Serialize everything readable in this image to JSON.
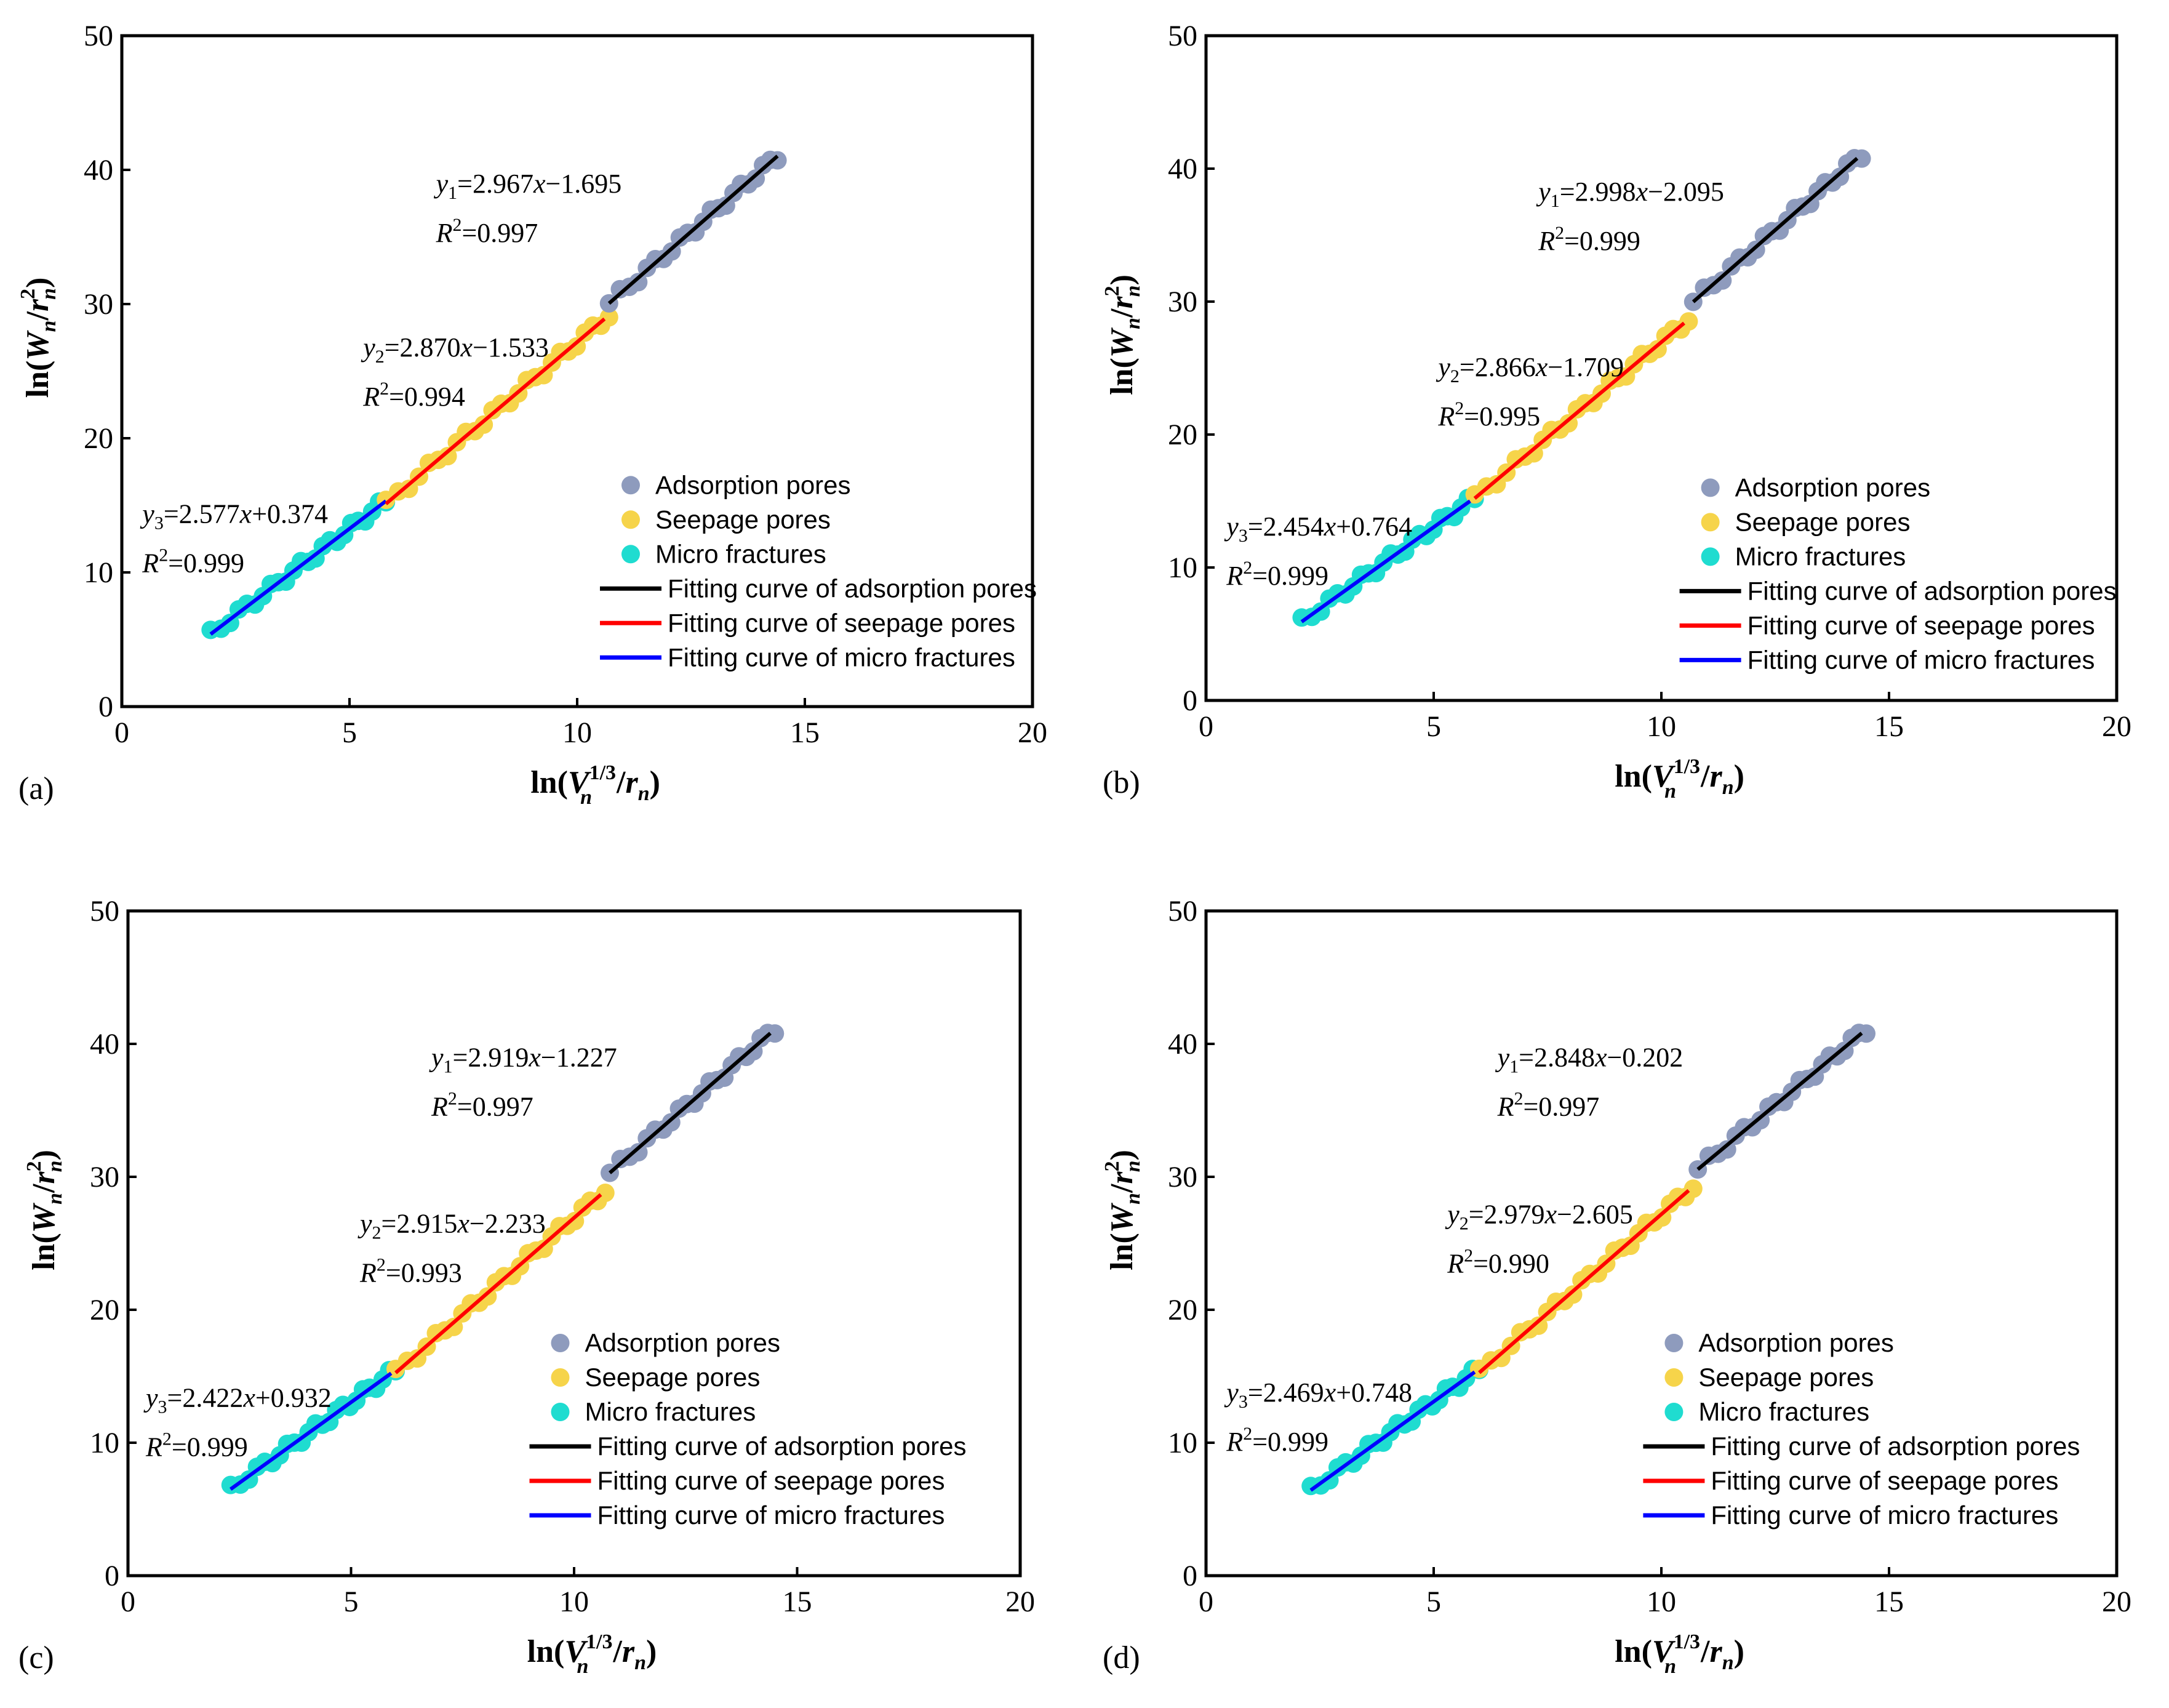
{
  "figure": {
    "panel_labels": [
      "(a)",
      "(b)",
      "(c)",
      "(d)"
    ],
    "legend": {
      "adsorption_pores": "Adsorption pores",
      "seepage_pores": "Seepage pores",
      "micro_fractures": "Micro fractures",
      "fit_adsorption": "Fitting curve of adsorption pores",
      "fit_seepage": "Fitting curve of seepage pores",
      "fit_micro": "Fitting curve of micro fractures"
    },
    "colors": {
      "adsorption_points": "#8e9bbd",
      "seepage_points": "#f6d44a",
      "micro_points": "#1fdcd0",
      "fit_adsorption": "#000000",
      "fit_seepage": "#ff0000",
      "fit_micro": "#0000ff"
    }
  },
  "chart_data": [
    {
      "type": "scatter",
      "panel": "(a)",
      "xlabel": "ln(Vn^1/3/rn)",
      "ylabel": "ln(Wn/rn^2)",
      "xlim": [
        0,
        20
      ],
      "ylim": [
        0,
        50
      ],
      "xticks": [
        0,
        5,
        10,
        15,
        20
      ],
      "yticks": [
        0,
        10,
        20,
        30,
        40,
        50
      ],
      "series": [
        {
          "name": "Adsorption pores",
          "x_range": [
            10.7,
            14.4
          ],
          "fit_slope": 2.967,
          "fit_intercept": -1.695,
          "fit_x": [
            10.7,
            14.4
          ]
        },
        {
          "name": "Seepage pores",
          "x_range": [
            5.8,
            10.7
          ],
          "fit_slope": 2.87,
          "fit_intercept": -1.533,
          "fit_x": [
            5.8,
            10.6
          ]
        },
        {
          "name": "Micro fractures",
          "x_range": [
            1.95,
            5.8
          ],
          "fit_slope": 2.577,
          "fit_intercept": 0.374,
          "fit_x": [
            1.95,
            5.8
          ]
        }
      ],
      "annotations": [
        {
          "var": "y",
          "sub": "1",
          "rest": "=2.967",
          "x": "x",
          "tail": "−1.695",
          "r2": "=0.997"
        },
        {
          "var": "y",
          "sub": "2",
          "rest": "=2.870",
          "x": "x",
          "tail": "−1.533",
          "r2": "=0.994"
        },
        {
          "var": "y",
          "sub": "3",
          "rest": "=2.577",
          "x": "x",
          "tail": "+0.374",
          "r2": "=0.999"
        }
      ]
    },
    {
      "type": "scatter",
      "panel": "(b)",
      "xlabel": "ln(Vn^1/3/rn)",
      "ylabel": "ln(Wn/rn^2)",
      "xlim": [
        0,
        20
      ],
      "ylim": [
        0,
        50
      ],
      "xticks": [
        0,
        5,
        10,
        15,
        20
      ],
      "yticks": [
        0,
        10,
        20,
        30,
        40,
        50
      ],
      "series": [
        {
          "name": "Adsorption pores",
          "x_range": [
            10.7,
            14.4
          ],
          "fit_slope": 2.998,
          "fit_intercept": -2.095,
          "fit_x": [
            10.7,
            14.3
          ]
        },
        {
          "name": "Seepage pores",
          "x_range": [
            5.9,
            10.6
          ],
          "fit_slope": 2.866,
          "fit_intercept": -1.709,
          "fit_x": [
            5.9,
            10.5
          ]
        },
        {
          "name": "Micro fractures",
          "x_range": [
            2.1,
            5.9
          ],
          "fit_slope": 2.454,
          "fit_intercept": 0.764,
          "fit_x": [
            2.1,
            5.8
          ]
        }
      ],
      "annotations": [
        {
          "var": "y",
          "sub": "1",
          "rest": "=2.998",
          "x": "x",
          "tail": "−2.095",
          "r2": "=0.999"
        },
        {
          "var": "y",
          "sub": "2",
          "rest": "=2.866",
          "x": "x",
          "tail": "−1.709",
          "r2": "=0.995"
        },
        {
          "var": "y",
          "sub": "3",
          "rest": "=2.454",
          "x": "x",
          "tail": "+0.764",
          "r2": "=0.999"
        }
      ]
    },
    {
      "type": "scatter",
      "panel": "(c)",
      "xlabel": "ln(Vn^1/3/rn)",
      "ylabel": "ln(Wn/rn^2)",
      "xlim": [
        0,
        20
      ],
      "ylim": [
        0,
        50
      ],
      "xticks": [
        0,
        5,
        10,
        15,
        20
      ],
      "yticks": [
        0,
        10,
        20,
        30,
        40,
        50
      ],
      "series": [
        {
          "name": "Adsorption pores",
          "x_range": [
            10.8,
            14.5
          ],
          "fit_slope": 2.919,
          "fit_intercept": -1.227,
          "fit_x": [
            10.8,
            14.4
          ]
        },
        {
          "name": "Seepage pores",
          "x_range": [
            6.0,
            10.7
          ],
          "fit_slope": 2.915,
          "fit_intercept": -2.233,
          "fit_x": [
            6.0,
            10.6
          ]
        },
        {
          "name": "Micro fractures",
          "x_range": [
            2.3,
            6.0
          ],
          "fit_slope": 2.422,
          "fit_intercept": 0.932,
          "fit_x": [
            2.3,
            5.9
          ]
        }
      ],
      "annotations": [
        {
          "var": "y",
          "sub": "1",
          "rest": "=2.919",
          "x": "x",
          "tail": "−1.227",
          "r2": "=0.997"
        },
        {
          "var": "y",
          "sub": "2",
          "rest": "=2.915",
          "x": "x",
          "tail": "−2.233",
          "r2": "=0.993"
        },
        {
          "var": "y",
          "sub": "3",
          "rest": "=2.422",
          "x": "x",
          "tail": "+0.932",
          "r2": "=0.999"
        }
      ]
    },
    {
      "type": "scatter",
      "panel": "(d)",
      "xlabel": "ln(Vn^1/3/rn)",
      "ylabel": "ln(Wn/rn^2)",
      "xlim": [
        0,
        20
      ],
      "ylim": [
        0,
        50
      ],
      "xticks": [
        0,
        5,
        10,
        15,
        20
      ],
      "yticks": [
        0,
        10,
        20,
        30,
        40,
        50
      ],
      "series": [
        {
          "name": "Adsorption pores",
          "x_range": [
            10.8,
            14.5
          ],
          "fit_slope": 2.848,
          "fit_intercept": -0.202,
          "fit_x": [
            10.8,
            14.4
          ]
        },
        {
          "name": "Seepage pores",
          "x_range": [
            6.0,
            10.7
          ],
          "fit_slope": 2.979,
          "fit_intercept": -2.605,
          "fit_x": [
            6.0,
            10.6
          ]
        },
        {
          "name": "Micro fractures",
          "x_range": [
            2.3,
            6.0
          ],
          "fit_slope": 2.469,
          "fit_intercept": 0.748,
          "fit_x": [
            2.3,
            5.9
          ]
        }
      ],
      "annotations": [
        {
          "var": "y",
          "sub": "1",
          "rest": "=2.848",
          "x": "x",
          "tail": "−0.202",
          "r2": "=0.997"
        },
        {
          "var": "y",
          "sub": "2",
          "rest": "=2.979",
          "x": "x",
          "tail": "−2.605",
          "r2": "=0.990"
        },
        {
          "var": "y",
          "sub": "3",
          "rest": "=2.469",
          "x": "x",
          "tail": "+0.748",
          "r2": "=0.999"
        }
      ]
    }
  ]
}
